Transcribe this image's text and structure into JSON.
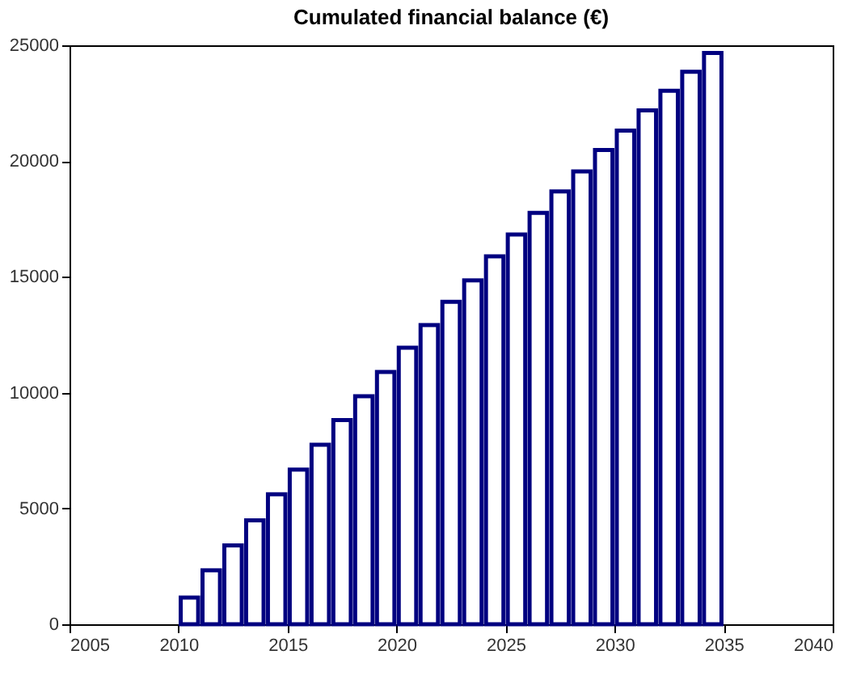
{
  "chart_data": {
    "type": "bar",
    "title": "Cumulated financial balance (€)",
    "x": [
      2010.5,
      2011.5,
      2012.5,
      2013.5,
      2014.5,
      2015.5,
      2016.5,
      2017.5,
      2018.5,
      2019.5,
      2020.5,
      2021.5,
      2022.5,
      2023.5,
      2024.5,
      2025.5,
      2026.5,
      2027.5,
      2028.5,
      2029.5,
      2030.5,
      2031.5,
      2032.5,
      2033.5,
      2034.5
    ],
    "values": [
      1150,
      2330,
      3400,
      4490,
      5610,
      6680,
      7750,
      8820,
      9850,
      10890,
      11940,
      12920,
      13920,
      14850,
      15890,
      16830,
      17760,
      18690,
      19550,
      20480,
      21320,
      22190,
      23040,
      23860,
      24670
    ],
    "color": "#000080",
    "xlim": [
      2005,
      2040
    ],
    "xticks": [
      2005,
      2010,
      2015,
      2020,
      2025,
      2030,
      2035,
      2040
    ],
    "ylim": [
      0,
      25000
    ],
    "yticks": [
      0,
      5000,
      10000,
      15000,
      20000,
      25000
    ],
    "grid": false
  }
}
